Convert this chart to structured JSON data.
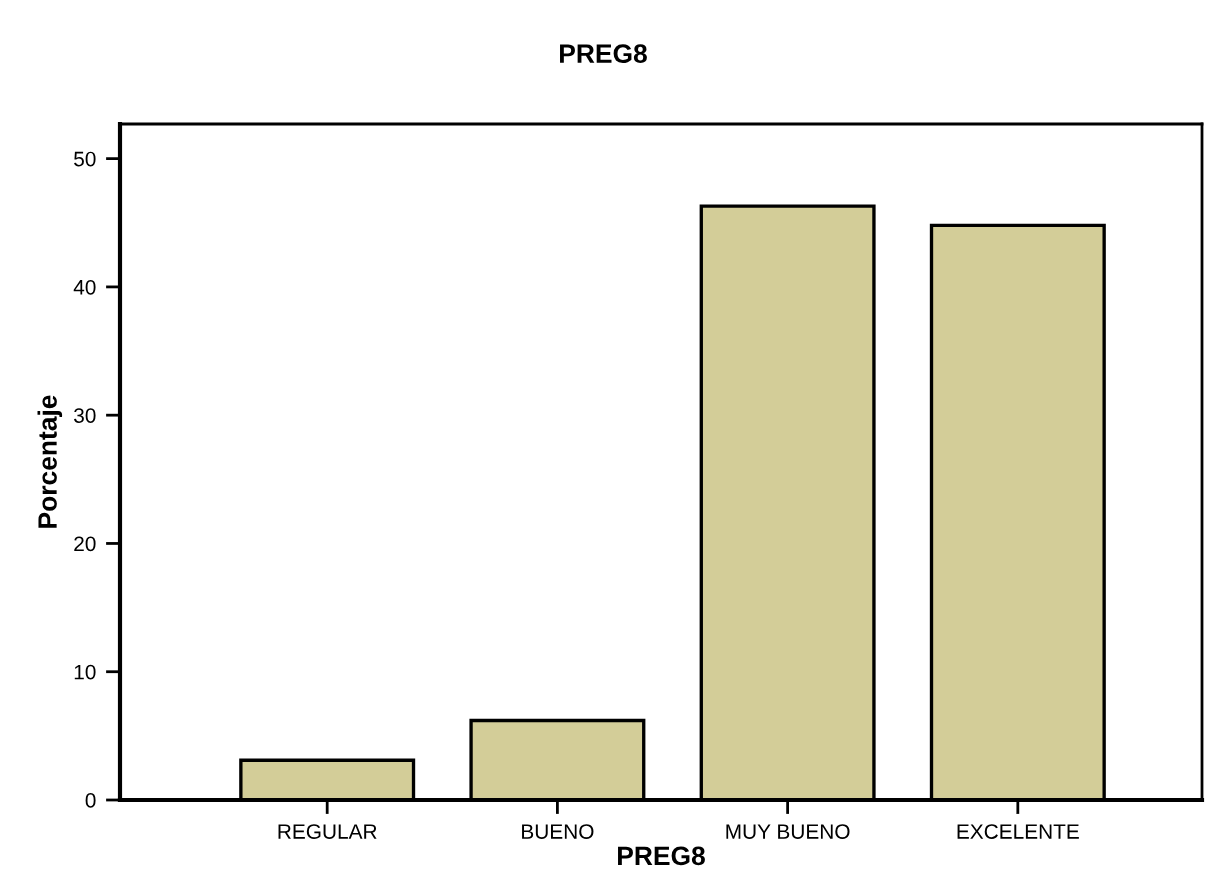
{
  "chart_data": {
    "type": "bar",
    "title": "PREG8",
    "xlabel": "PREG8",
    "ylabel": "Porcentaje",
    "categories": [
      "REGULAR",
      "BUENO",
      "MUY BUENO",
      "EXCELENTE"
    ],
    "values": [
      3.1,
      6.2,
      46.3,
      44.8
    ],
    "color": "#d3cd98",
    "ylim": [
      0,
      52.7
    ],
    "yticks": [
      0,
      10,
      20,
      30,
      40,
      50
    ],
    "grid": false,
    "legend": false
  }
}
